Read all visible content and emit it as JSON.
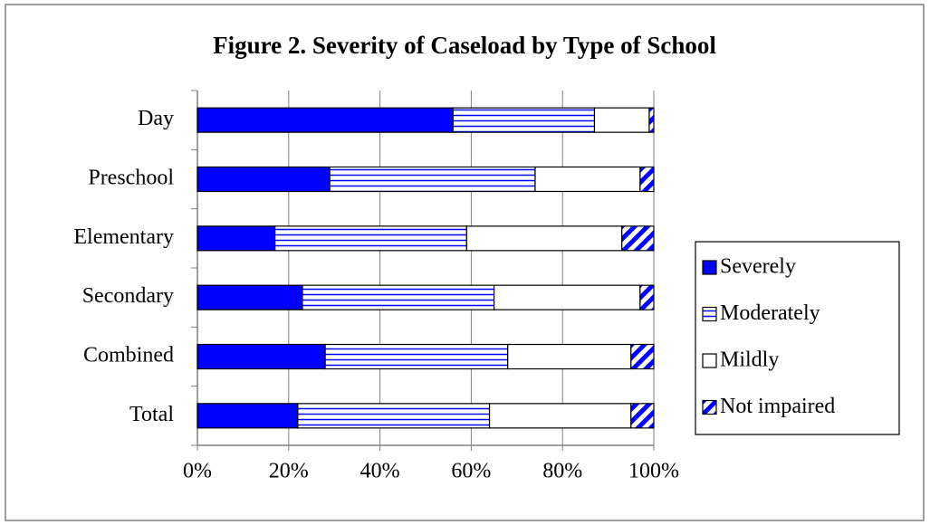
{
  "chart_data": {
    "type": "stacked_barh",
    "title": "Figure 2. Severity of Caseload by Type of School",
    "categories": [
      "Day",
      "Preschool",
      "Elementary",
      "Secondary",
      "Combined",
      "Total"
    ],
    "series": [
      {
        "name": "Severely",
        "color": "#0000ff",
        "pattern": "solid",
        "values": [
          56,
          29,
          17,
          23,
          28,
          22
        ]
      },
      {
        "name": "Moderately",
        "color": "#0000ff",
        "pattern": "horizontal",
        "values": [
          31,
          45,
          42,
          42,
          40,
          42
        ]
      },
      {
        "name": "Mildly",
        "color": "#ffffff",
        "pattern": "none",
        "values": [
          12,
          23,
          34,
          32,
          27,
          31
        ]
      },
      {
        "name": "Not impaired",
        "color": "#0000ff",
        "pattern": "diagonal",
        "values": [
          1,
          3,
          7,
          3,
          5,
          5
        ]
      }
    ],
    "xlim": [
      0,
      100
    ],
    "xticks": [
      {
        "value": 0,
        "label": "0%"
      },
      {
        "value": 20,
        "label": "20%"
      },
      {
        "value": 40,
        "label": "40%"
      },
      {
        "value": 60,
        "label": "60%"
      },
      {
        "value": 80,
        "label": "80%"
      },
      {
        "value": 100,
        "label": "100%"
      }
    ],
    "grid": true,
    "legend": "right"
  }
}
